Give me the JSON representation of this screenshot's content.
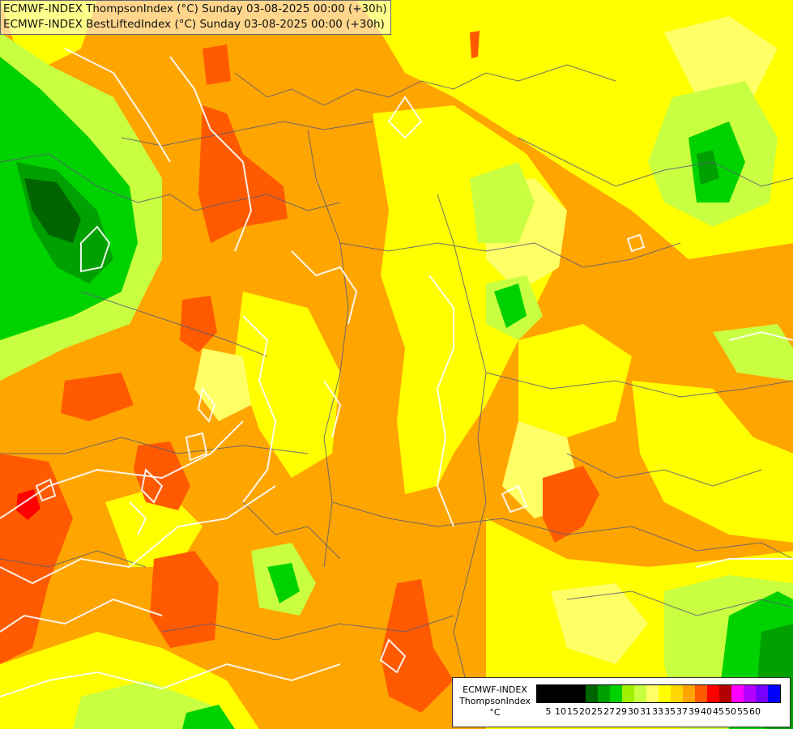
{
  "titles": {
    "line1": "ECMWF-INDEX ThompsonIndex (°C) Sunday 03-08-2025 00:00 (+30h)",
    "line2": "ECMWF-INDEX BestLiftedIndex (°C) Sunday 03-08-2025 00:00 (+30h)"
  },
  "legend": {
    "model": "ECMWF-INDEX",
    "parameter": "ThompsonIndex",
    "unit": "°C",
    "ticks": [
      "5",
      "10",
      "15",
      "20",
      "25",
      "27",
      "29",
      "30",
      "31",
      "33",
      "35",
      "37",
      "39",
      "40",
      "45",
      "50",
      "55",
      "60"
    ],
    "colors": [
      "#000000",
      "#000000",
      "#000000",
      "#000000",
      "#006400",
      "#00a000",
      "#00d200",
      "#a0f000",
      "#c8ff40",
      "#ffff66",
      "#ffff00",
      "#ffd700",
      "#ffa500",
      "#ff5a00",
      "#ff0000",
      "#b40000",
      "#ff00ff",
      "#b400ff",
      "#7800ff",
      "#0000ff"
    ]
  },
  "map_colors": {
    "orange": "#ffa500",
    "yellow": "#ffff00",
    "light_yellow": "#ffff66",
    "lime": "#c8ff40",
    "light_green": "#a0f000",
    "green": "#00d200",
    "mid_green": "#00a000",
    "dark_green": "#006400",
    "red_orange": "#ff5a00",
    "red": "#ff0000",
    "border_line": "#5a5a78",
    "contour_line": "#ffffff"
  }
}
